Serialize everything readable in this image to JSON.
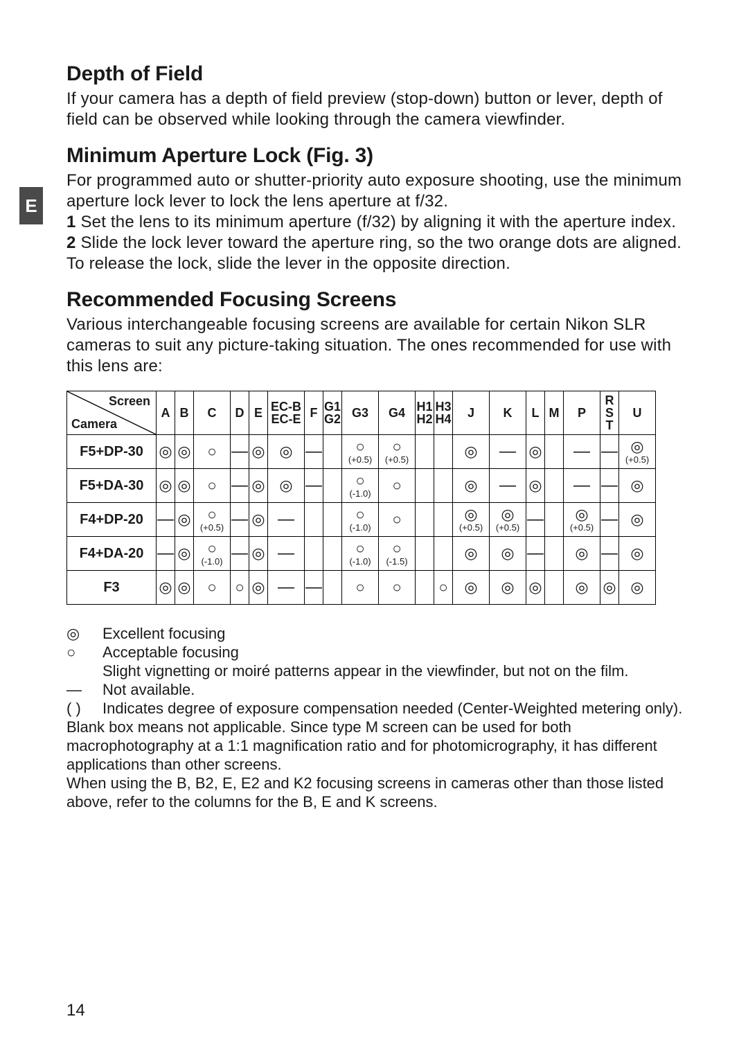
{
  "tab": "E",
  "sections": {
    "dof": {
      "title": "Depth of Field",
      "body": "If your camera has a depth of field preview (stop-down) button or lever, depth of field can be observed while looking through the camera viewfinder."
    },
    "mal": {
      "title": "Minimum Aperture Lock (Fig. 3)",
      "intro": "For programmed auto or shutter-priority auto exposure shooting, use the minimum aperture lock lever to lock the lens aperture at f/32.",
      "step1": "Set the lens to its minimum aperture (f/32) by aligning it with the aperture index.",
      "step2": "Slide the lock lever toward the aperture ring, so the two orange dots are aligned.",
      "outro": "To release the lock, slide the lever in the opposite direction."
    },
    "rfs": {
      "title": "Recommended Focusing Screens",
      "body": "Various interchangeable focusing screens are available for certain Nikon SLR cameras to suit any picture-taking situation. The ones recommended for use with this lens are:"
    }
  },
  "table": {
    "diag_labels": {
      "top": "Screen",
      "bottom": "Camera"
    },
    "columns": [
      "A",
      "B",
      "C",
      "D",
      "E",
      "EC-B\nEC-E",
      "F",
      "G1\nG2",
      "G3",
      "G4",
      "H1\nH2",
      "H3\nH4",
      "J",
      "K",
      "L",
      "M",
      "P",
      "R\nS\nT",
      "U"
    ],
    "col_widths": [
      "narrow",
      "narrow",
      "wide",
      "narrow",
      "narrow",
      "wide",
      "narrow",
      "narrow",
      "wide",
      "wide",
      "narrow",
      "narrow",
      "wide",
      "wide",
      "narrow",
      "narrow",
      "wide",
      "narrow",
      "wide"
    ],
    "rows": [
      {
        "camera": "F5+DP-30",
        "cells": [
          {
            "s": "◎"
          },
          {
            "s": "◎"
          },
          {
            "s": "○"
          },
          {
            "s": "—"
          },
          {
            "s": "◎"
          },
          {
            "s": "◎"
          },
          {
            "s": "—"
          },
          {
            "s": ""
          },
          {
            "s": "○",
            "c": "(+0.5)"
          },
          {
            "s": "○",
            "c": "(+0.5)"
          },
          {
            "s": ""
          },
          {
            "s": ""
          },
          {
            "s": "◎"
          },
          {
            "s": "—"
          },
          {
            "s": "◎"
          },
          {
            "s": ""
          },
          {
            "s": "—"
          },
          {
            "s": "—"
          },
          {
            "s": "◎",
            "c": "(+0.5)"
          }
        ]
      },
      {
        "camera": "F5+DA-30",
        "cells": [
          {
            "s": "◎"
          },
          {
            "s": "◎"
          },
          {
            "s": "○"
          },
          {
            "s": "—"
          },
          {
            "s": "◎"
          },
          {
            "s": "◎"
          },
          {
            "s": "—"
          },
          {
            "s": ""
          },
          {
            "s": "○",
            "c": "(-1.0)"
          },
          {
            "s": "○"
          },
          {
            "s": ""
          },
          {
            "s": ""
          },
          {
            "s": "◎"
          },
          {
            "s": "—"
          },
          {
            "s": "◎"
          },
          {
            "s": ""
          },
          {
            "s": "—"
          },
          {
            "s": "—"
          },
          {
            "s": "◎"
          }
        ]
      },
      {
        "camera": "F4+DP-20",
        "cells": [
          {
            "s": "—"
          },
          {
            "s": "◎"
          },
          {
            "s": "○",
            "c": "(+0.5)"
          },
          {
            "s": "—"
          },
          {
            "s": "◎"
          },
          {
            "s": "—"
          },
          {
            "s": ""
          },
          {
            "s": ""
          },
          {
            "s": "○",
            "c": "(-1.0)"
          },
          {
            "s": "○"
          },
          {
            "s": ""
          },
          {
            "s": ""
          },
          {
            "s": "◎",
            "c": "(+0.5)"
          },
          {
            "s": "◎",
            "c": "(+0.5)"
          },
          {
            "s": "—"
          },
          {
            "s": ""
          },
          {
            "s": "◎",
            "c": "(+0.5)"
          },
          {
            "s": "—"
          },
          {
            "s": "◎"
          }
        ]
      },
      {
        "camera": "F4+DA-20",
        "cells": [
          {
            "s": "—"
          },
          {
            "s": "◎"
          },
          {
            "s": "○",
            "c": "(-1.0)"
          },
          {
            "s": "—"
          },
          {
            "s": "◎"
          },
          {
            "s": "—"
          },
          {
            "s": ""
          },
          {
            "s": ""
          },
          {
            "s": "○",
            "c": "(-1.0)"
          },
          {
            "s": "○",
            "c": "(-1.5)"
          },
          {
            "s": ""
          },
          {
            "s": ""
          },
          {
            "s": "◎"
          },
          {
            "s": "◎"
          },
          {
            "s": "—"
          },
          {
            "s": ""
          },
          {
            "s": "◎"
          },
          {
            "s": "—"
          },
          {
            "s": "◎"
          }
        ]
      },
      {
        "camera": "F3",
        "cells": [
          {
            "s": "◎"
          },
          {
            "s": "◎"
          },
          {
            "s": "○"
          },
          {
            "s": "○"
          },
          {
            "s": "◎"
          },
          {
            "s": "—"
          },
          {
            "s": "—"
          },
          {
            "s": ""
          },
          {
            "s": "○"
          },
          {
            "s": "○"
          },
          {
            "s": ""
          },
          {
            "s": "○"
          },
          {
            "s": "◎"
          },
          {
            "s": "◎"
          },
          {
            "s": "◎"
          },
          {
            "s": ""
          },
          {
            "s": "◎"
          },
          {
            "s": "◎"
          },
          {
            "s": "◎"
          }
        ]
      }
    ]
  },
  "legend": {
    "excellent": {
      "sym": "◎",
      "text": "Excellent focusing"
    },
    "acceptable": {
      "sym": "○",
      "text": "Acceptable focusing"
    },
    "vignette": "Slight vignetting or moiré patterns appear in the viewfinder, but not on the film.",
    "na": {
      "sym": "—",
      "text": "Not available."
    },
    "parens": {
      "sym": "(  )",
      "text": "Indicates degree of exposure compensation needed (Center-Weighted metering only)."
    }
  },
  "footnote": "Blank box means not applicable. Since type M screen can be used for both macrophotography at a 1:1 magnification ratio and for photomicrography, it has different applications than other screens.\nWhen using the B, B2, E, E2 and K2 focusing screens in cameras other than those listed above, refer to the columns for the B, E and K screens.",
  "page_number": "14",
  "colors": {
    "text": "#1a1a1a",
    "tab_bg": "#4a4a4a",
    "tab_fg": "#ffffff",
    "border": "#000000",
    "page_bg": "#ffffff"
  }
}
